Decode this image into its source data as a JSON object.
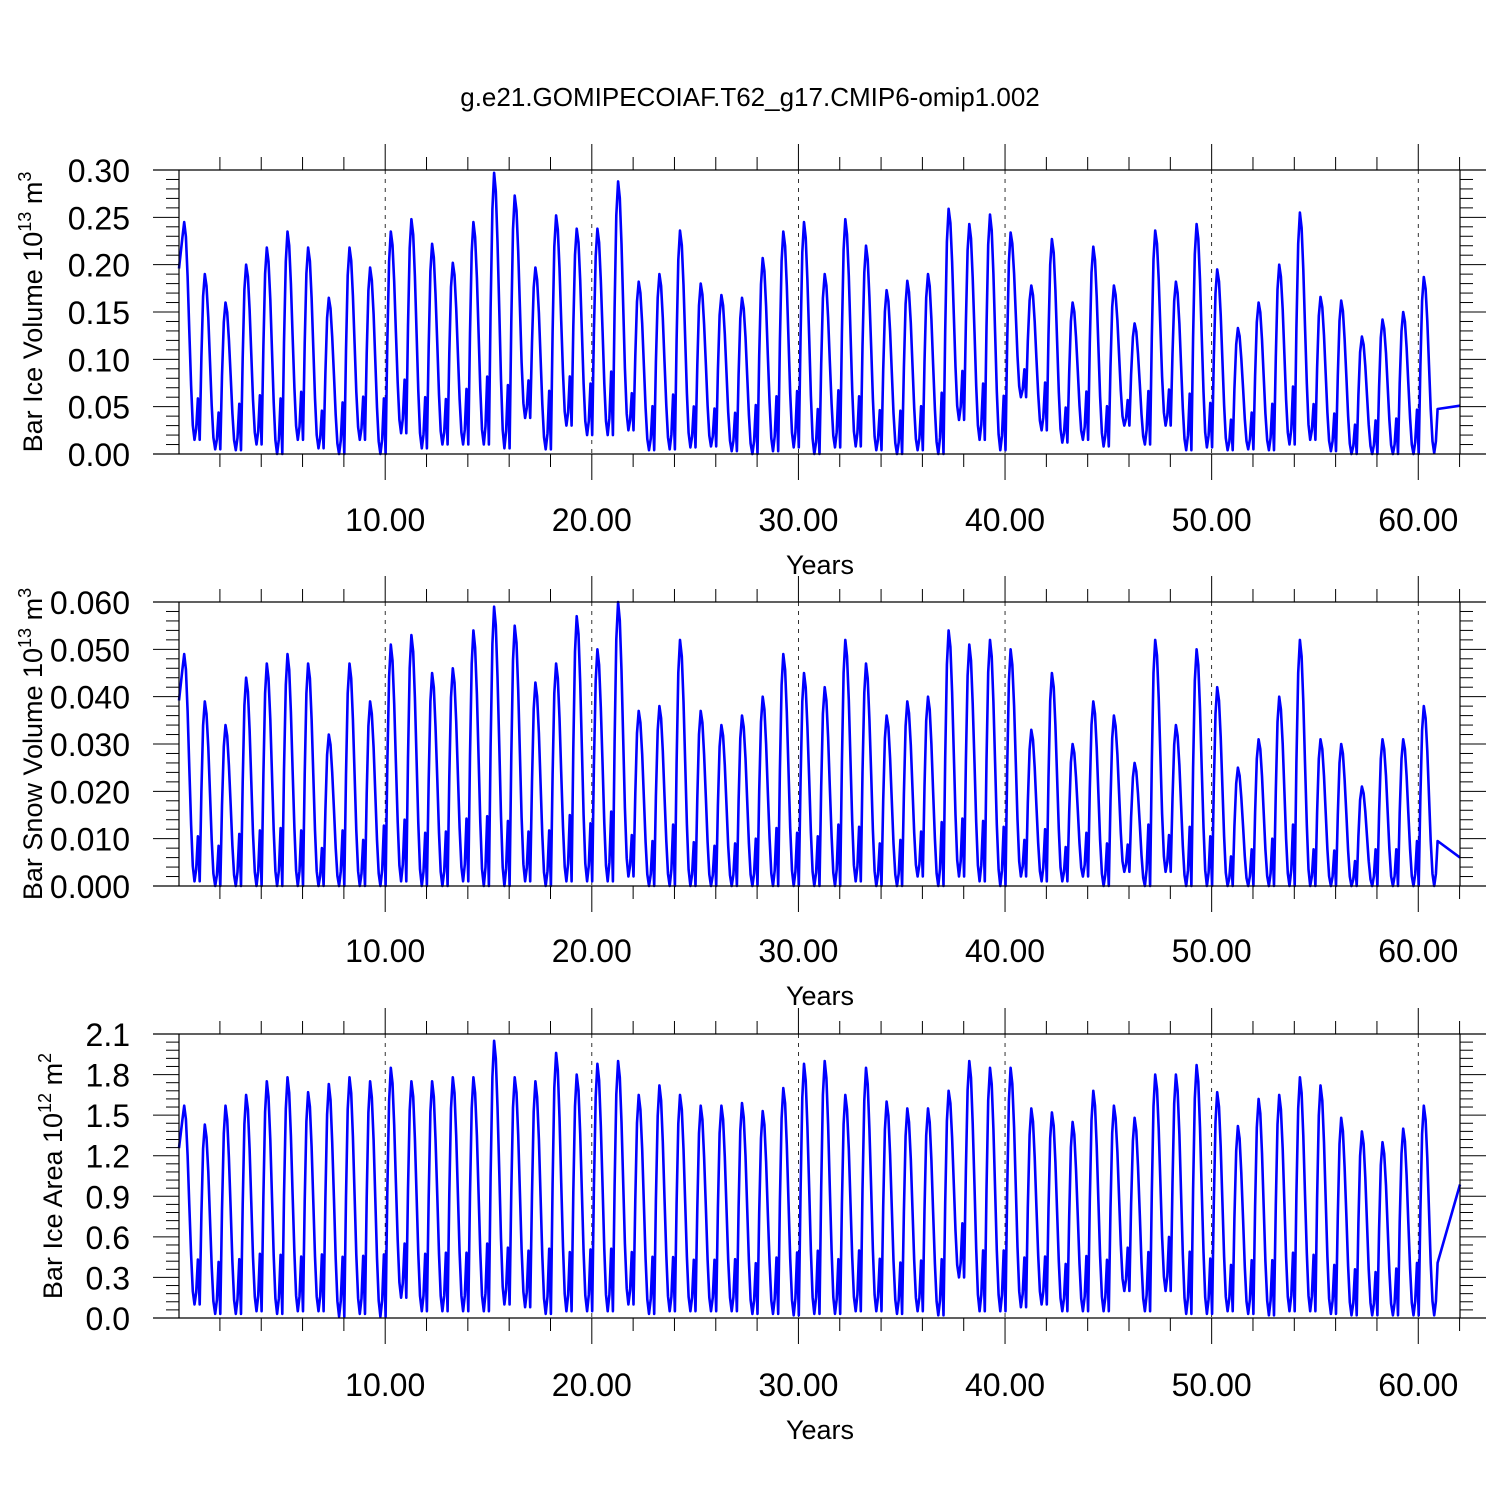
{
  "title": "g.e21.GOMIPECOIAF.T62_g17.CMIP6-omip1.002",
  "series_color": "#0000ff",
  "chart_data": [
    {
      "type": "line",
      "ylabel_main": "Bar Ice Volume 10",
      "ylabel_exp": "13",
      "ylabel_unit": " m",
      "ylabel_unit_exp": "3",
      "xlabel": "Years",
      "xlim": [
        0.02,
        62.02
      ],
      "ylim": [
        0.0,
        0.3
      ],
      "yticks": [
        0.0,
        0.05,
        0.1,
        0.15,
        0.2,
        0.25,
        0.3
      ],
      "ytick_labels": [
        "0.00",
        "0.05",
        "0.10",
        "0.15",
        "0.20",
        "0.25",
        "0.30"
      ],
      "xticks": [
        10,
        20,
        30,
        40,
        50,
        60
      ],
      "xtick_labels": [
        "10.00",
        "20.00",
        "30.00",
        "40.00",
        "50.00",
        "60.00"
      ],
      "dashed_gridlines_x": true,
      "series": [
        {
          "maxima": [
            0.245,
            0.19,
            0.16,
            0.2,
            0.218,
            0.235,
            0.218,
            0.165,
            0.218,
            0.197,
            0.235,
            0.248,
            0.222,
            0.202,
            0.245,
            0.297,
            0.273,
            0.197,
            0.252,
            0.238,
            0.238,
            0.288,
            0.182,
            0.19,
            0.236,
            0.18,
            0.168,
            0.165,
            0.207,
            0.235,
            0.245,
            0.19,
            0.248,
            0.22,
            0.173,
            0.183,
            0.19,
            0.259,
            0.243,
            0.253,
            0.234,
            0.178,
            0.227,
            0.16,
            0.219,
            0.178,
            0.138,
            0.236,
            0.182,
            0.243,
            0.195,
            0.133,
            0.16,
            0.2,
            0.255,
            0.166,
            0.162,
            0.124,
            0.142,
            0.15,
            0.187
          ],
          "minima": [
            0.015,
            0.005,
            0.004,
            0.01,
            0.0,
            0.015,
            0.006,
            0.0,
            0.015,
            0.0,
            0.022,
            0.006,
            0.01,
            0.01,
            0.01,
            0.006,
            0.038,
            0.005,
            0.03,
            0.02,
            0.02,
            0.025,
            0.004,
            0.005,
            0.007,
            0.008,
            0.003,
            0.0,
            0.003,
            0.007,
            0.0,
            0.007,
            0.008,
            0.004,
            0.0,
            0.004,
            0.0,
            0.036,
            0.015,
            0.004,
            0.06,
            0.025,
            0.012,
            0.015,
            0.008,
            0.03,
            0.01,
            0.03,
            0.004,
            0.007,
            0.004,
            0.005,
            0.004,
            0.01,
            0.015,
            0.003,
            0.0,
            0.0,
            0.0,
            0.0,
            0.001
          ]
        }
      ]
    },
    {
      "type": "line",
      "ylabel_main": "Bar Snow Volume 10",
      "ylabel_exp": "13",
      "ylabel_unit": " m",
      "ylabel_unit_exp": "3",
      "xlabel": "Years",
      "xlim": [
        0.02,
        62.02
      ],
      "ylim": [
        0.0,
        0.06
      ],
      "yticks": [
        0.0,
        0.01,
        0.02,
        0.03,
        0.04,
        0.05,
        0.06
      ],
      "ytick_labels": [
        "0.000",
        "0.010",
        "0.020",
        "0.030",
        "0.040",
        "0.050",
        "0.060"
      ],
      "xticks": [
        10,
        20,
        30,
        40,
        50,
        60
      ],
      "xtick_labels": [
        "10.00",
        "20.00",
        "30.00",
        "40.00",
        "50.00",
        "60.00"
      ],
      "dashed_gridlines_x": true,
      "series": [
        {
          "maxima": [
            0.049,
            0.039,
            0.034,
            0.044,
            0.047,
            0.049,
            0.047,
            0.032,
            0.047,
            0.039,
            0.051,
            0.053,
            0.045,
            0.046,
            0.054,
            0.059,
            0.055,
            0.043,
            0.047,
            0.057,
            0.05,
            0.06,
            0.037,
            0.038,
            0.052,
            0.037,
            0.034,
            0.036,
            0.04,
            0.049,
            0.045,
            0.042,
            0.052,
            0.047,
            0.036,
            0.039,
            0.04,
            0.054,
            0.051,
            0.052,
            0.05,
            0.033,
            0.045,
            0.03,
            0.039,
            0.036,
            0.026,
            0.052,
            0.034,
            0.05,
            0.042,
            0.025,
            0.031,
            0.04,
            0.052,
            0.031,
            0.03,
            0.021,
            0.031,
            0.031,
            0.038
          ],
          "minima": [
            0.001,
            0.0,
            0.0,
            0.0,
            0.0,
            0.0,
            0.0,
            0.0,
            0.0,
            0.0,
            0.001,
            0.0,
            0.0,
            0.001,
            0.0,
            0.0,
            0.001,
            0.0,
            0.001,
            0.001,
            0.001,
            0.002,
            0.0,
            0.0,
            0.0,
            0.0,
            0.0,
            0.0,
            0.0,
            0.0,
            0.0,
            0.0,
            0.001,
            0.0,
            0.0,
            0.002,
            0.0,
            0.002,
            0.001,
            0.0,
            0.002,
            0.001,
            0.001,
            0.002,
            0.0,
            0.003,
            0.0,
            0.003,
            0.0,
            0.0,
            0.0,
            0.0,
            0.0,
            0.0,
            0.0,
            0.0,
            0.0,
            0.0,
            0.0,
            0.0,
            0.0
          ]
        }
      ]
    },
    {
      "type": "line",
      "ylabel_main": "Bar Ice Area 10",
      "ylabel_exp": "12",
      "ylabel_unit": " m",
      "ylabel_unit_exp": "2",
      "xlabel": "Years",
      "xlim": [
        0.02,
        62.02
      ],
      "ylim": [
        0.0,
        2.1
      ],
      "yticks": [
        0.0,
        0.3,
        0.6,
        0.9,
        1.2,
        1.5,
        1.8,
        2.1
      ],
      "ytick_labels": [
        "0.0",
        "0.3",
        "0.6",
        "0.9",
        "1.2",
        "1.5",
        "1.8",
        "2.1"
      ],
      "xticks": [
        10,
        20,
        30,
        40,
        50,
        60
      ],
      "xtick_labels": [
        "10.00",
        "20.00",
        "30.00",
        "40.00",
        "50.00",
        "60.00"
      ],
      "dashed_gridlines_x": true,
      "series": [
        {
          "maxima": [
            1.57,
            1.43,
            1.57,
            1.65,
            1.75,
            1.78,
            1.67,
            1.73,
            1.78,
            1.75,
            1.85,
            1.75,
            1.75,
            1.78,
            1.78,
            2.05,
            1.78,
            1.75,
            1.96,
            1.8,
            1.88,
            1.9,
            1.65,
            1.72,
            1.65,
            1.57,
            1.57,
            1.59,
            1.53,
            1.7,
            1.88,
            1.9,
            1.65,
            1.85,
            1.6,
            1.55,
            1.55,
            1.68,
            1.9,
            1.85,
            1.85,
            1.55,
            1.52,
            1.45,
            1.68,
            1.57,
            1.48,
            1.8,
            1.8,
            1.87,
            1.67,
            1.42,
            1.62,
            1.65,
            1.78,
            1.72,
            1.48,
            1.38,
            1.3,
            1.4,
            1.57
          ],
          "minima": [
            0.1,
            0.03,
            0.03,
            0.05,
            0.03,
            0.05,
            0.05,
            0.01,
            0.03,
            0.01,
            0.15,
            0.05,
            0.05,
            0.05,
            0.05,
            0.1,
            0.08,
            0.03,
            0.05,
            0.05,
            0.05,
            0.1,
            0.03,
            0.05,
            0.05,
            0.05,
            0.05,
            0.03,
            0.03,
            0.02,
            0.03,
            0.03,
            0.05,
            0.05,
            0.03,
            0.05,
            0.02,
            0.3,
            0.05,
            0.05,
            0.08,
            0.1,
            0.05,
            0.05,
            0.05,
            0.2,
            0.05,
            0.2,
            0.03,
            0.03,
            0.05,
            0.03,
            0.02,
            0.05,
            0.05,
            0.03,
            0.02,
            0.02,
            0.02,
            0.02,
            0.02
          ]
        }
      ]
    }
  ]
}
